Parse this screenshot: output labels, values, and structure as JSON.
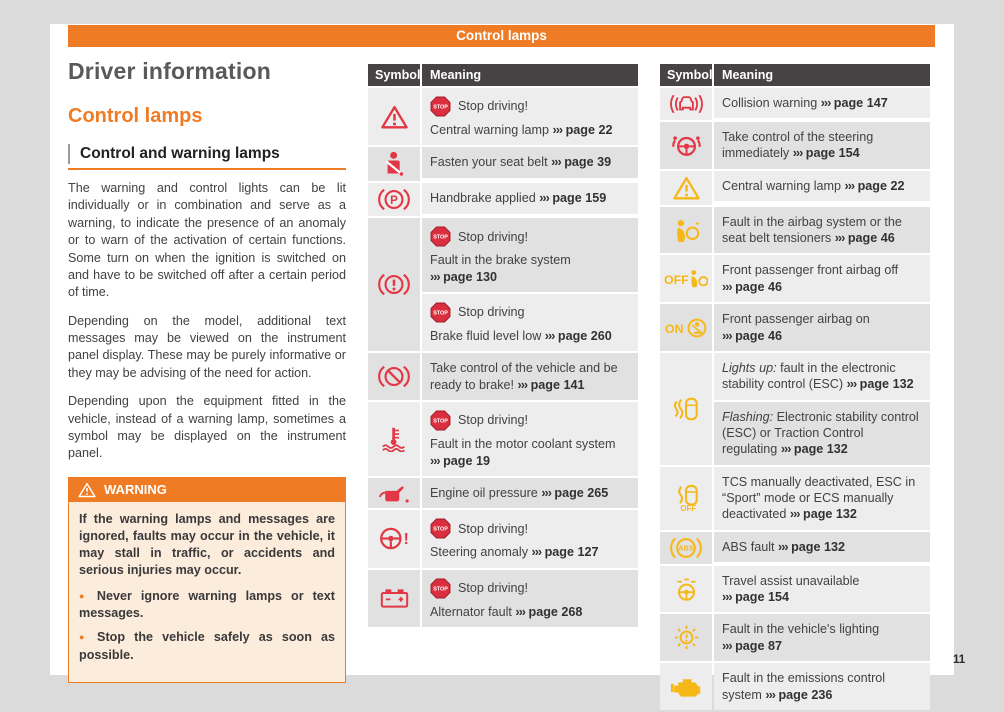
{
  "banner": {
    "title": "Control lamps"
  },
  "page_number": "11",
  "colors": {
    "accent": "#ef7c24",
    "red": "#e23744",
    "yellow": "#f6b819",
    "header_bg": "#474344"
  },
  "arrow": "›››",
  "left": {
    "title": "Driver information",
    "section_title": "Control lamps",
    "subsection_title": "Control and warning lamps",
    "paragraphs": [
      "The warning and control lights can be lit individually or in combination and serve as a warning, to indicate the presence of an anomaly or to warn of the activation of certain functions. Some turn on when the ignition is switched on and have to be switched off after a certain period of time.",
      "Depending on the model, additional text messages may be viewed on the instrument panel display. These may be purely informative or they may be advising of the need for action.",
      "Depending upon the equipment fitted in the vehicle, instead of a warning lamp, sometimes a symbol may be displayed on the instrument panel."
    ],
    "warning": {
      "title": "WARNING",
      "body": "If the warning lamps and messages are ignored, faults may occur in the vehicle, it may stall in traffic, or accidents and serious injuries may occur.",
      "bullets": [
        "Never ignore warning lamps or text messages.",
        "Stop the vehicle safely as soon as possible."
      ]
    }
  },
  "tables": [
    {
      "headers": {
        "symbol": "Symbol",
        "meaning": "Meaning"
      },
      "rows": [
        {
          "icon": "warning-triangle",
          "color": "red",
          "cells": [
            {
              "badge": "Stop driving!",
              "text": "Central warning lamp",
              "page": "page 22"
            }
          ]
        },
        {
          "icon": "seatbelt",
          "color": "red",
          "cells": [
            {
              "text": "Fasten your seat belt",
              "page": "page 39"
            }
          ]
        },
        {
          "icon": "handbrake",
          "color": "red",
          "cells": [
            {
              "text": "Handbrake applied",
              "page": "page 159"
            }
          ]
        },
        {
          "icon": "brake-system",
          "color": "red",
          "cells": [
            {
              "badge": "Stop driving!",
              "text": "Fault in the brake system",
              "page": "page 130"
            },
            {
              "badge": "Stop driving",
              "text": "Brake fluid level low",
              "page": "page 260"
            }
          ]
        },
        {
          "icon": "brake-assist",
          "color": "red",
          "cells": [
            {
              "text": "Take control of the vehicle and be ready to brake!",
              "page": "page 141"
            }
          ]
        },
        {
          "icon": "coolant",
          "color": "red",
          "cells": [
            {
              "badge": "Stop driving!",
              "text": "Fault in the motor coolant system",
              "page": "page 19"
            }
          ]
        },
        {
          "icon": "oil-pressure",
          "color": "red",
          "cells": [
            {
              "text": "Engine oil pressure",
              "page": "page 265"
            }
          ]
        },
        {
          "icon": "steering-anomaly",
          "color": "red",
          "cells": [
            {
              "badge": "Stop driving!",
              "text": "Steering anomaly",
              "page": "page 127"
            }
          ]
        },
        {
          "icon": "battery",
          "color": "red",
          "cells": [
            {
              "badge": "Stop driving!",
              "text": "Alternator fault",
              "page": "page 268"
            }
          ]
        }
      ]
    },
    {
      "headers": {
        "symbol": "Symbol",
        "meaning": "Meaning"
      },
      "rows": [
        {
          "icon": "collision-warning",
          "color": "red",
          "cells": [
            {
              "text": "Collision warning",
              "page": "page 147"
            }
          ]
        },
        {
          "icon": "steering-takeover",
          "color": "red",
          "cells": [
            {
              "text": "Take control of the steering immediately",
              "page": "page 154"
            }
          ]
        },
        {
          "icon": "warning-triangle",
          "color": "yellow",
          "cells": [
            {
              "text": "Central warning lamp",
              "page": "page 22"
            }
          ]
        },
        {
          "icon": "airbag-fault",
          "color": "yellow",
          "cells": [
            {
              "text": "Fault in the airbag system or the seat belt tensioners",
              "page": "page 46"
            }
          ]
        },
        {
          "icon": "airbag-off",
          "color": "yellow",
          "cells": [
            {
              "text": "Front passenger front airbag off",
              "page": "page 46"
            }
          ]
        },
        {
          "icon": "airbag-on",
          "color": "yellow",
          "cells": [
            {
              "text": "Front passenger airbag on",
              "page": "page 46"
            }
          ]
        },
        {
          "icon": "esc",
          "color": "yellow",
          "cells": [
            {
              "italic": "Lights up:",
              "text": "fault in the electronic stability control (ESC)",
              "page": "page 132"
            },
            {
              "italic": "Flashing:",
              "text": "Electronic stability control (ESC) or Traction Control regulating",
              "page": "page 132"
            }
          ]
        },
        {
          "icon": "esc-off",
          "color": "yellow",
          "cells": [
            {
              "text": "TCS manually deactivated, ESC in “Sport” mode or ECS manually deactivated",
              "page": "page 132"
            }
          ]
        },
        {
          "icon": "abs",
          "color": "yellow",
          "cells": [
            {
              "text": "ABS fault",
              "page": "page 132"
            }
          ]
        },
        {
          "icon": "travel-assist",
          "color": "yellow",
          "cells": [
            {
              "text": "Travel assist unavailable",
              "page": "page 154"
            }
          ]
        },
        {
          "icon": "lighting-fault",
          "color": "yellow",
          "cells": [
            {
              "text": "Fault in the vehicle's lighting",
              "page": "page 87"
            }
          ]
        },
        {
          "icon": "emissions",
          "color": "yellow",
          "cells": [
            {
              "text": "Fault in the emissions control system",
              "page": "page 236"
            }
          ]
        }
      ]
    }
  ]
}
